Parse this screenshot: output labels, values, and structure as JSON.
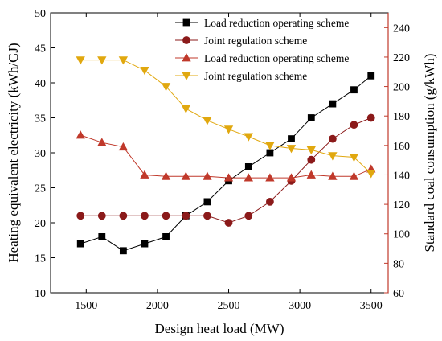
{
  "chart_data": {
    "type": "line",
    "xlabel": "Design heat load (MW)",
    "ylabel_left": "Heating equivalent electricity (kWh/GJ)",
    "ylabel_right": "Standard coal consumption (g/kWh)",
    "x_ticks": [
      "1500",
      "2000",
      "2500",
      "3000",
      "3500"
    ],
    "x_tick_values": [
      1500,
      2000,
      2500,
      3000,
      3500
    ],
    "left_ticks": [
      "10",
      "15",
      "20",
      "25",
      "30",
      "35",
      "40",
      "45",
      "50"
    ],
    "left_tick_values": [
      10,
      15,
      20,
      25,
      30,
      35,
      40,
      45,
      50
    ],
    "right_ticks": [
      "60",
      "80",
      "100",
      "120",
      "140",
      "160",
      "180",
      "200",
      "220",
      "240"
    ],
    "right_tick_values": [
      60,
      80,
      100,
      120,
      140,
      160,
      180,
      200,
      220,
      240
    ],
    "xlim": [
      1250,
      3620
    ],
    "ylim_left": [
      10,
      50
    ],
    "ylim_right": [
      60,
      250
    ],
    "right_axis_color": "#c0392b",
    "x": [
      1460,
      1610,
      1760,
      1910,
      2060,
      2200,
      2350,
      2500,
      2640,
      2790,
      2940,
      3080,
      3230,
      3380,
      3500
    ],
    "series": [
      {
        "name": "Load reduction operating scheme",
        "axis": "left",
        "marker": "square",
        "color": "#000000",
        "values": [
          17,
          18,
          16,
          17,
          18,
          21,
          23,
          26,
          28,
          30,
          32,
          35,
          37,
          39,
          41
        ]
      },
      {
        "name": "Joint regulation scheme",
        "axis": "left",
        "marker": "circle",
        "color": "#8b1a1a",
        "values": [
          21,
          21,
          21,
          21,
          21,
          21,
          21,
          20,
          21,
          23,
          26,
          29,
          32,
          34,
          35
        ]
      },
      {
        "name": "Load reduction operating scheme",
        "axis": "right",
        "marker": "triangle-up",
        "color": "#c0392b",
        "values": [
          167,
          162,
          159,
          140,
          139,
          139,
          139,
          138,
          138,
          138,
          138,
          140,
          139,
          139,
          144
        ]
      },
      {
        "name": "Joint regulation scheme",
        "axis": "right",
        "marker": "triangle-down",
        "color": "#e1a80f",
        "values": [
          218,
          218,
          218,
          211,
          200,
          185,
          177,
          171,
          166,
          160,
          158,
          157,
          153,
          152,
          141
        ]
      }
    ]
  }
}
